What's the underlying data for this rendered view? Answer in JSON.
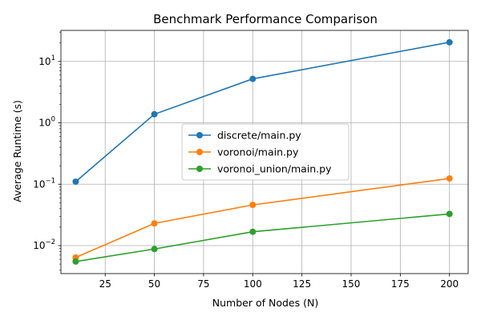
{
  "chart_data": {
    "type": "line",
    "title": "Benchmark Performance Comparison",
    "xlabel": "Number of Nodes (N)",
    "ylabel": "Average Runtime (s)",
    "xlim": [
      2.5,
      209.5
    ],
    "ylim": [
      0.0035,
      32
    ],
    "yscale": "log",
    "x": [
      10,
      50,
      100,
      200
    ],
    "xticks": [
      25,
      50,
      75,
      100,
      125,
      150,
      175,
      200
    ],
    "xtick_labels": [
      "25",
      "50",
      "75",
      "100",
      "125",
      "150",
      "175",
      "200"
    ],
    "yticks": [
      0.01,
      0.1,
      1,
      10
    ],
    "ytick_labels": [
      {
        "base": "10",
        "exp": "−2"
      },
      {
        "base": "10",
        "exp": "−1"
      },
      {
        "base": "10",
        "exp": "0"
      },
      {
        "base": "10",
        "exp": "1"
      }
    ],
    "grid": true,
    "legend_position": "center",
    "series": [
      {
        "name": "discrete/main.py",
        "color": "#1f77b4",
        "values": [
          0.11,
          1.38,
          5.2,
          20.5
        ]
      },
      {
        "name": "voronoi/main.py",
        "color": "#ff7f0e",
        "values": [
          0.0064,
          0.023,
          0.046,
          0.124
        ]
      },
      {
        "name": "voronoi_union/main.py",
        "color": "#2ca02c",
        "values": [
          0.0055,
          0.0088,
          0.0168,
          0.0328
        ]
      }
    ]
  }
}
